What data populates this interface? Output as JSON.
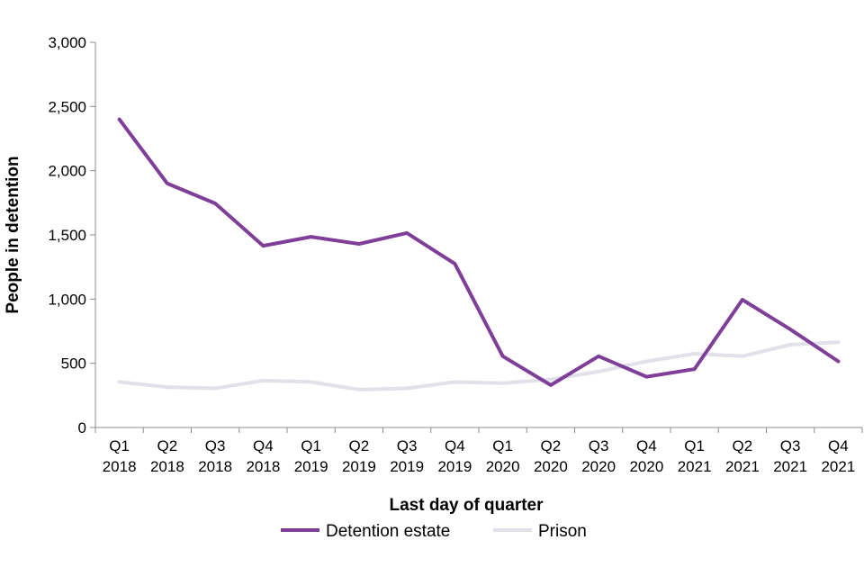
{
  "chart_data": {
    "type": "line",
    "title": "",
    "xlabel": "Last day of quarter",
    "ylabel": "People in detention",
    "ylim": [
      0,
      3000
    ],
    "yticks": [
      0,
      500,
      1000,
      1500,
      2000,
      2500,
      3000
    ],
    "ytick_labels": [
      "0",
      "500",
      "1,000",
      "1,500",
      "2,000",
      "2,500",
      "3,000"
    ],
    "grid": false,
    "legend_position": "bottom",
    "categories": [
      {
        "quarter": "Q1",
        "year": "2018"
      },
      {
        "quarter": "Q2",
        "year": "2018"
      },
      {
        "quarter": "Q3",
        "year": "2018"
      },
      {
        "quarter": "Q4",
        "year": "2018"
      },
      {
        "quarter": "Q1",
        "year": "2019"
      },
      {
        "quarter": "Q2",
        "year": "2019"
      },
      {
        "quarter": "Q3",
        "year": "2019"
      },
      {
        "quarter": "Q4",
        "year": "2019"
      },
      {
        "quarter": "Q1",
        "year": "2020"
      },
      {
        "quarter": "Q2",
        "year": "2020"
      },
      {
        "quarter": "Q3",
        "year": "2020"
      },
      {
        "quarter": "Q4",
        "year": "2020"
      },
      {
        "quarter": "Q1",
        "year": "2021"
      },
      {
        "quarter": "Q2",
        "year": "2021"
      },
      {
        "quarter": "Q3",
        "year": "2021"
      },
      {
        "quarter": "Q4",
        "year": "2021"
      }
    ],
    "series": [
      {
        "name": "Detention estate",
        "color": "#7f3f98",
        "values": [
          2400,
          1900,
          1745,
          1415,
          1485,
          1430,
          1515,
          1275,
          555,
          330,
          555,
          395,
          455,
          995,
          765,
          515
        ]
      },
      {
        "name": "Prison",
        "color": "#e1e1e9",
        "values": [
          355,
          315,
          305,
          365,
          355,
          295,
          305,
          355,
          345,
          375,
          435,
          515,
          575,
          555,
          645,
          665
        ]
      }
    ]
  }
}
